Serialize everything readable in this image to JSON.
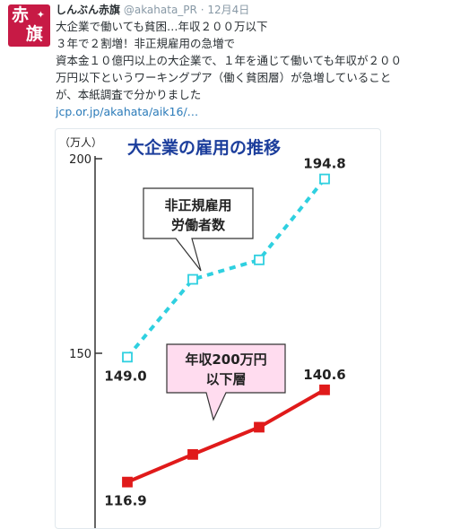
{
  "account": {
    "avatar_chars": [
      "赤",
      "旗"
    ],
    "name": "しんぶん赤旗",
    "handle": "@akahata_PR",
    "separator": "·",
    "date": "12月4日"
  },
  "tweet": {
    "text": "大企業で働いても貧困…年収２００万以下\n３年で２割増！非正規雇用の急増で\n資本金１０億円以上の大企業で、１年を通じて働いても年収が２００\n万円以下というワーキングプア（働く貧困層）が急増していること\nが、本紙調査で分かりました",
    "link": "jcp.or.jp/akahata/aik16/…"
  },
  "colors": {
    "accent_red": "#c71a45",
    "cyan": "#2fd0e0",
    "red": "#e01a1a"
  },
  "chart_data": {
    "type": "line",
    "title": "大企業の雇用の推移",
    "ylabel": "（万人）",
    "y_ticks": [
      "200",
      "150"
    ],
    "ylim": [
      110,
      200
    ],
    "series": [
      {
        "name": "非正規雇用\n労働者数",
        "label_lines": [
          "非正規雇用",
          "労働者数"
        ],
        "values": [
          149.0,
          169.0,
          174.0,
          194.8
        ],
        "first_label": "149.0",
        "last_label": "194.8"
      },
      {
        "name": "年収200万円\n以下層",
        "label_lines": [
          "年収200万円",
          "以下層"
        ],
        "values": [
          116.9,
          124.0,
          131.0,
          140.6
        ],
        "first_label": "116.9",
        "last_label": "140.6"
      }
    ]
  }
}
